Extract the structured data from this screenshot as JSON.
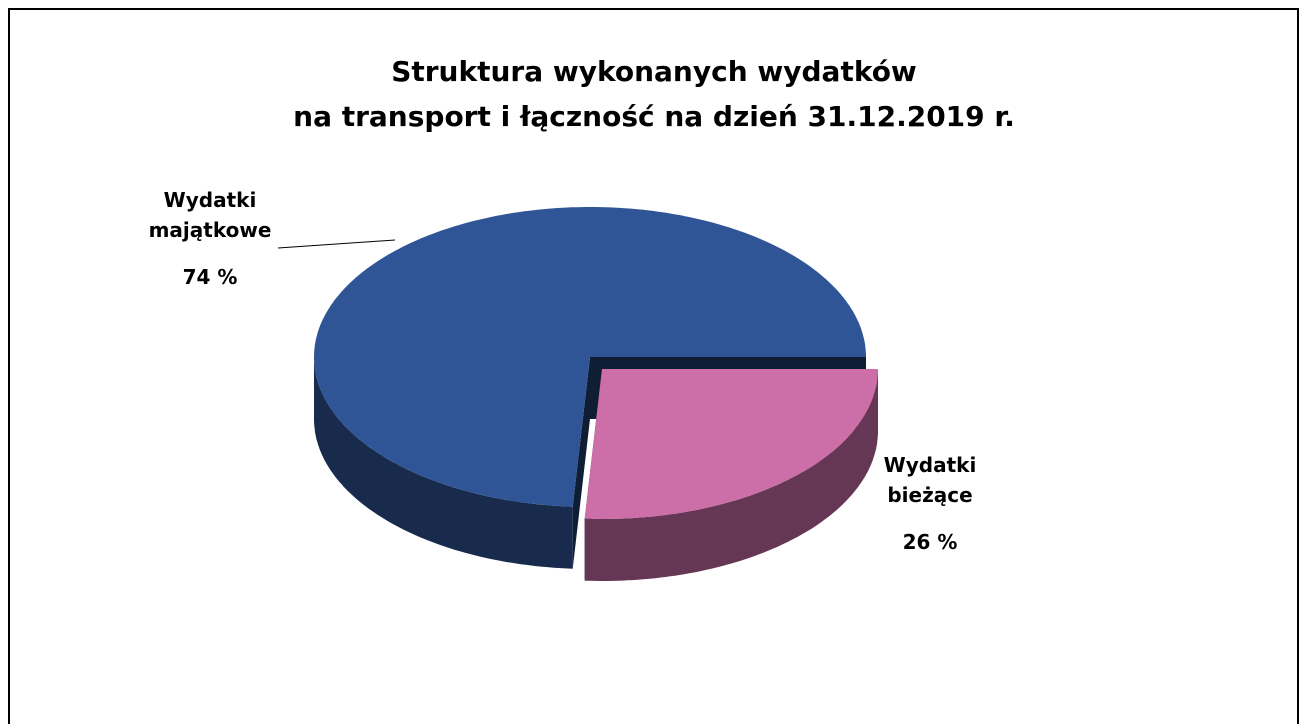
{
  "chart_data": {
    "type": "pie",
    "title": "Struktura wykonanych wydatków",
    "subtitle": "na transport i łączność na dzień 31.12.2019 r.",
    "categories": [
      "Wydatki majątkowe",
      "Wydatki bieżące"
    ],
    "values": [
      74,
      26
    ],
    "value_labels": [
      "74 %",
      "26 %"
    ],
    "colors": [
      "#2f5597",
      "#cc6ea8"
    ]
  }
}
